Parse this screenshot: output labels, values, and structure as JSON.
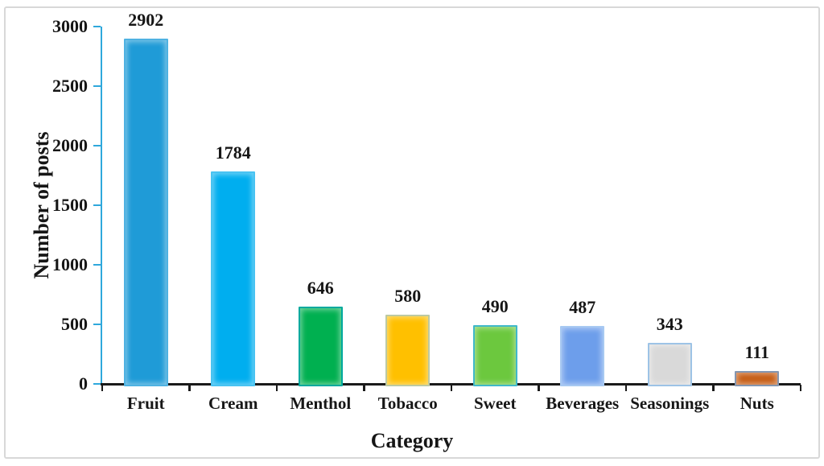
{
  "chart_data": {
    "type": "bar",
    "title": "",
    "xlabel": "Category",
    "ylabel": "Number of posts",
    "categories": [
      "Fruit",
      "Cream",
      "Menthol",
      "Tobacco",
      "Sweet",
      "Beverages",
      "Seasonings",
      "Nuts"
    ],
    "values": [
      2902,
      1784,
      646,
      580,
      490,
      487,
      343,
      111
    ],
    "data_labels": [
      "2902",
      "1784",
      "646",
      "580",
      "490",
      "487",
      "343",
      "111"
    ],
    "ylim": [
      0,
      3000
    ],
    "yticks": [
      0,
      500,
      1000,
      1500,
      2000,
      2500,
      3000
    ],
    "grid": false,
    "legend": "none",
    "bar_styles": [
      {
        "fill": "#1F9BD7",
        "border": "#4FB2E2"
      },
      {
        "fill": "#00AEEF",
        "border": "#49C3F2"
      },
      {
        "fill": "#00B050",
        "border": "#00A99D"
      },
      {
        "fill": "#FFC000",
        "border": "#BCC9A2"
      },
      {
        "fill": "#6CC83E",
        "border": "#3FB8C9"
      },
      {
        "fill": "#6D9EEB",
        "border": "#A7C9F2"
      },
      {
        "fill": "#D9D9D9",
        "border": "#9DC3E6"
      },
      {
        "fill": "#C55A11",
        "border": "#8496B0"
      }
    ],
    "axis_colors": {
      "y_axis": "#2FA8DC",
      "x_axis": "#1A1A1A"
    }
  },
  "frame": {
    "border_color": "#D8D8D8"
  }
}
